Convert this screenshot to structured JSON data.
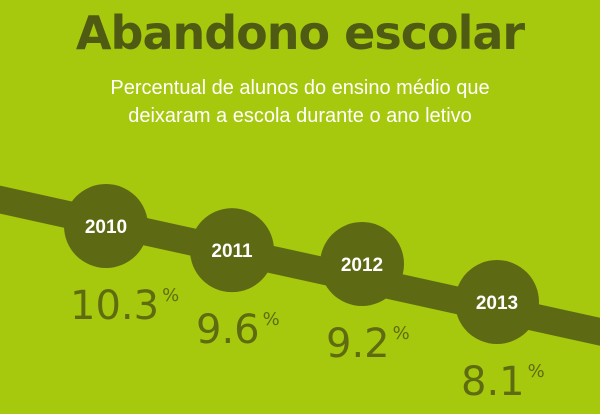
{
  "header": {
    "title": "Abandono escolar",
    "subtitle_line1": "Percentual de alunos do ensino médio que",
    "subtitle_line2": "deixaram a escola durante o ano letivo"
  },
  "colors": {
    "background": "#a6c90e",
    "band": "#5e6913",
    "circle": "#5e6913",
    "value_text": "#5f6b10",
    "title": "#4f5a12"
  },
  "chart_data": {
    "type": "line",
    "title": "Abandono escolar",
    "subtitle": "Percentual de alunos do ensino médio que deixaram a escola durante o ano letivo",
    "categories": [
      "2010",
      "2011",
      "2012",
      "2013"
    ],
    "series": [
      {
        "values": [
          10.3,
          9.6,
          9.2,
          8.1
        ]
      }
    ],
    "value_labels": [
      "10.3",
      "9.6",
      "9.2",
      "8.1"
    ],
    "unit": "%",
    "xlabel": "",
    "ylabel": "",
    "legend": "none",
    "grid": false
  }
}
